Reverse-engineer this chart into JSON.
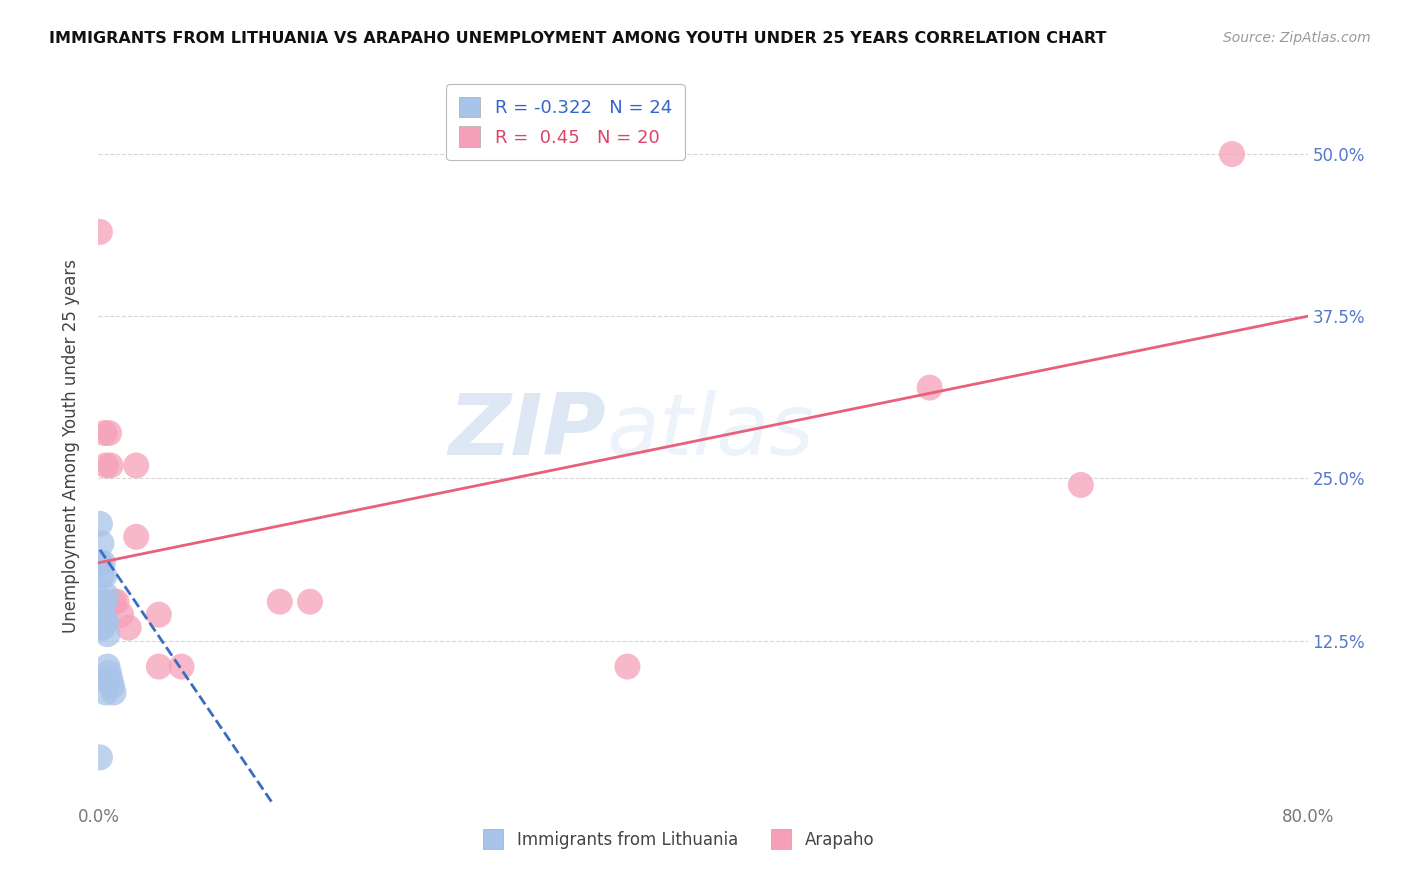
{
  "title": "IMMIGRANTS FROM LITHUANIA VS ARAPAHO UNEMPLOYMENT AMONG YOUTH UNDER 25 YEARS CORRELATION CHART",
  "source": "Source: ZipAtlas.com",
  "ylabel": "Unemployment Among Youth under 25 years",
  "xlim": [
    0.0,
    0.8
  ],
  "ylim": [
    0.0,
    0.55
  ],
  "yticks": [
    0.125,
    0.25,
    0.375,
    0.5
  ],
  "ytick_labels": [
    "12.5%",
    "25.0%",
    "37.5%",
    "50.0%"
  ],
  "xticks": [
    0.0,
    0.1,
    0.2,
    0.3,
    0.4,
    0.5,
    0.6,
    0.7,
    0.8
  ],
  "xtick_labels": [
    "0.0%",
    "",
    "",
    "",
    "",
    "",
    "",
    "",
    "80.0%"
  ],
  "series1_label": "Immigrants from Lithuania",
  "series1_color": "#a8c4e8",
  "series1_R": -0.322,
  "series1_N": 24,
  "series1_line_color": "#3a6dbd",
  "series2_label": "Arapaho",
  "series2_color": "#f5a0b8",
  "series2_R": 0.45,
  "series2_N": 20,
  "series2_line_color": "#e8607a",
  "scatter1_x": [
    0.001,
    0.001,
    0.001,
    0.002,
    0.002,
    0.002,
    0.002,
    0.003,
    0.003,
    0.003,
    0.003,
    0.004,
    0.004,
    0.004,
    0.004,
    0.005,
    0.005,
    0.005,
    0.006,
    0.006,
    0.007,
    0.008,
    0.009,
    0.01
  ],
  "scatter1_y": [
    0.215,
    0.185,
    0.035,
    0.2,
    0.175,
    0.145,
    0.135,
    0.185,
    0.155,
    0.145,
    0.135,
    0.175,
    0.155,
    0.14,
    0.095,
    0.16,
    0.14,
    0.085,
    0.13,
    0.105,
    0.1,
    0.095,
    0.09,
    0.085
  ],
  "scatter2_x": [
    0.001,
    0.004,
    0.007,
    0.01,
    0.012,
    0.015,
    0.02,
    0.025,
    0.04,
    0.055,
    0.12,
    0.14,
    0.35,
    0.55,
    0.65,
    0.75,
    0.005,
    0.008,
    0.025,
    0.04
  ],
  "scatter2_y": [
    0.44,
    0.285,
    0.285,
    0.155,
    0.155,
    0.145,
    0.135,
    0.205,
    0.145,
    0.105,
    0.155,
    0.155,
    0.105,
    0.32,
    0.245,
    0.5,
    0.26,
    0.26,
    0.26,
    0.105
  ],
  "line2_x0": 0.0,
  "line2_y0": 0.185,
  "line2_x1": 0.8,
  "line2_y1": 0.375,
  "line1_x0": 0.001,
  "line1_y0": 0.195,
  "line1_x1": 0.115,
  "line1_y1": 0.0,
  "watermark_zip": "ZIP",
  "watermark_atlas": "atlas",
  "background_color": "#ffffff",
  "grid_color": "#d8d8d8"
}
